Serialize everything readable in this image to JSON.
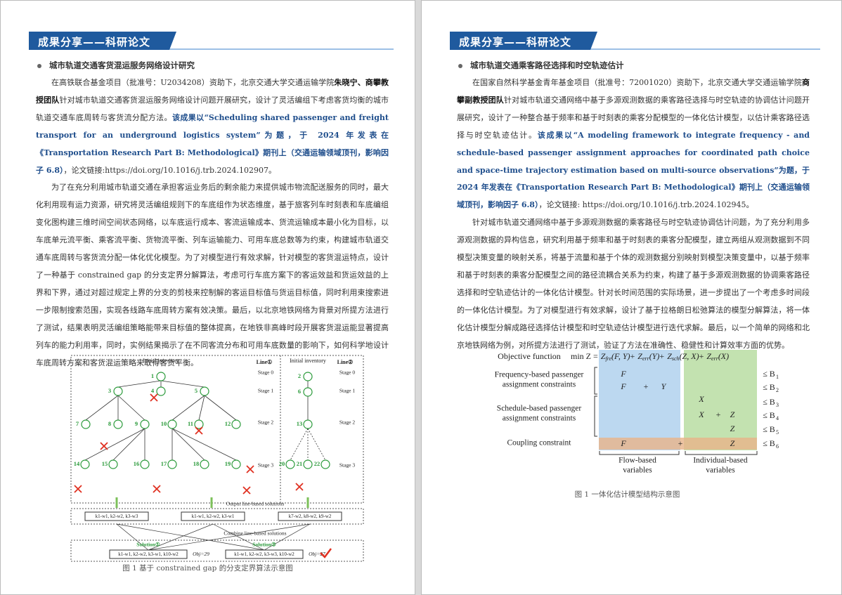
{
  "pages": [
    {
      "banner": "成果分享——科研论文",
      "heading": "城市轨道交通客货混运服务网络设计研究",
      "paragraphs": [
        [
          {
            "text": "在高铁联合基金项目（批准号：U2034208）资助下，北京交通大学交通运输学院"
          },
          {
            "text": "朱晓宁、商攀教授团队",
            "style": "bold"
          },
          {
            "text": "针对城市轨道交通客货混运服务网络设计问题开展研究，设计了灵活编组下考虑客货均衡的城市轨道交通车底周转与客货流分配方法。"
          },
          {
            "text": "该成果以“Scheduling shared passenger and freight transport for an underground logistics system”为题，于 2024 年发表在《Transportation Research Part B: Methodological》期刊上（交通运输领域顶刊，影响因子 6.8）",
            "style": "bold-blue"
          },
          {
            "text": "，论文链接:https://doi.org/10.1016/j.trb.2024.102907。"
          }
        ],
        [
          {
            "text": "为了在充分利用城市轨道交通在承担客运业务后的剩余能力来提供城市物流配送服务的同时，最大化利用现有运力资源，研究将灵活编组规则下的车底组作为状态维度，基于旅客列车时刻表和车底编组变化图构建三维时间空间状态网络，以车底运行成本、客流运输成本、货流运输成本最小化为目标，以车底单元流平衡、乘客流平衡、货物流平衡、列车运输能力、可用车底总数等为约束，构建城市轨道交通车底周转与客货流分配一体化优化模型。为了对模型进行有效求解，针对模型的客货混运特点，设计了一种基于 constrained gap 的分支定界分解算法，考虑可行车底方案下的客运效益和货运效益的上界和下界，通过对超过规定上界的分支的剪枝来控制解的客运目标值与货运目标值，同时利用束搜索进一步限制搜索范围，实现各线路车底周转方案有效决策。最后，以北京地铁网络为背景对所提方法进行了测试，结果表明灵活编组策略能带来目标值的整体提高，在地铁非高峰时段开展客货混运能显著提高列车的能力利用率，同时，实例结果揭示了在不同客流分布和可用车底数量的影响下，如何科学地设计车底周转方案和客货混运策略来取得客货平衡。"
          }
        ]
      ],
      "figure": {
        "inventory_label": "Initial inventory",
        "line_labels": [
          "Line①",
          "Line②"
        ],
        "stages": [
          "Stage 0",
          "Stage 1",
          "Stage 2",
          "Stage 3"
        ],
        "nodes": [
          "1",
          "3",
          "4",
          "5",
          "7",
          "8",
          "9",
          "10",
          "11",
          "12",
          "14",
          "15",
          "16",
          "17",
          "18",
          "19",
          "2",
          "6",
          "13",
          "20",
          "21",
          "22"
        ],
        "output_label": "Output line-based solutions",
        "line_solutions": [
          "k1-w1, k2-w2, k3-w3",
          "k1-w1, k2-w2, k3-w1",
          "k7-w2, k8-w2, k9-w2"
        ],
        "combine_label": "Combine line-based solutions",
        "solutions": [
          {
            "name": "Solution①",
            "value": "k1-w1, k2-w2, k3-w1, k10-w2",
            "obj": "Obj=29"
          },
          {
            "name": "Solution②",
            "value": "k1-w1, k2-w2, k3-w3, k10-w2",
            "obj": "Obj=27"
          }
        ]
      },
      "caption": "图 1  基于 constrained gap 的分支定界算法示意图"
    },
    {
      "banner": "成果分享——科研论文",
      "heading": "城市轨道交通乘客路径选择和时空轨迹估计",
      "paragraphs": [
        [
          {
            "text": "在国家自然科学基金青年基金项目（批准号：72001020）资助下，北京交通大学交通运输学院"
          },
          {
            "text": "商攀副教授团队",
            "style": "bold"
          },
          {
            "text": "针对城市轨道交通网络中基于多源观测数据的乘客路径选择与时空轨迹的协调估计问题开展研究，设计了一种整合基于频率和基于时刻表的乘客分配模型的一体化估计模型，以估计乘客路径选择与时空轨迹估计。"
          },
          {
            "text": "该成果以“A modeling framework to integrate frequency - and schedule-based passenger assignment approaches for coordinated path choice and space-time trajectory estimation based on multi-source observations”为题，于 2024 年发表在《Transportation Research Part B: Methodological》期刊上（交通运输领域顶刊，影响因子 6.8）",
            "style": "bold-blue"
          },
          {
            "text": "，论文链接: https://doi.org/10.1016/j.trb.2024.102945。"
          }
        ],
        [
          {
            "text": "针对城市轨道交通网络中基于多源观测数据的乘客路径与时空轨迹协调估计问题，为了充分利用多源观测数据的异构信息，研究利用基于频率和基于时刻表的乘客分配模型，建立两组从观测数据到不同模型决策变量的映射关系，将基于流量和基于个体的观测数据分别映射到模型决策变量中，以基于频率和基于时刻表的乘客分配模型之间的路径流耦合关系为约束，构建了基于多源观测数据的协调乘客路径选择和时空轨迹估计的一体化估计模型。针对长时间范围的实际场景，进一步提出了一个考虑多时间段的一体化估计模型。为了对模型进行有效求解，设计了基于拉格朗日松弛算法的模型分解算法，将一体化估计模型分解成路径选择估计模型和时空轨迹估计模型进行迭代求解。最后，以一个简单的网络和北京地铁网络为例，对所提方法进行了测试，验证了方法在准确性、稳健性和计算效率方面的优势。"
          }
        ]
      ],
      "figure": {
        "objective_label": "Objective function",
        "objective_prefix": "min Z =",
        "joiner": "+",
        "terms": [
          {
            "base": "Z",
            "sub": "fre",
            "args": "(F, Y)"
          },
          {
            "base": "Z",
            "sub": "err",
            "args": "(Y)"
          },
          {
            "base": "Z",
            "sub": "sch",
            "args": "(Z, X)"
          },
          {
            "base": "Z",
            "sub": "err",
            "args": "(X)"
          }
        ],
        "row_labels": [
          [
            "Frequency-based passenger",
            "assignment constraints"
          ],
          [
            "Schedule-based passenger",
            "assignment constraints"
          ],
          [
            "Coupling constraint"
          ]
        ],
        "cells": [
          "F",
          "F",
          "+",
          "Y",
          "X",
          "X",
          "+",
          "Z",
          "Z",
          "F",
          "+",
          "Z"
        ],
        "bound_symbol": "≤ B",
        "bounds": [
          "1",
          "2",
          "3",
          "4",
          "5",
          "6"
        ],
        "column_labels": [
          [
            "Flow-based",
            "variables"
          ],
          [
            "Individual-based",
            "variables"
          ]
        ]
      },
      "caption": "图 1  一体化估计模型结构示意图"
    }
  ]
}
